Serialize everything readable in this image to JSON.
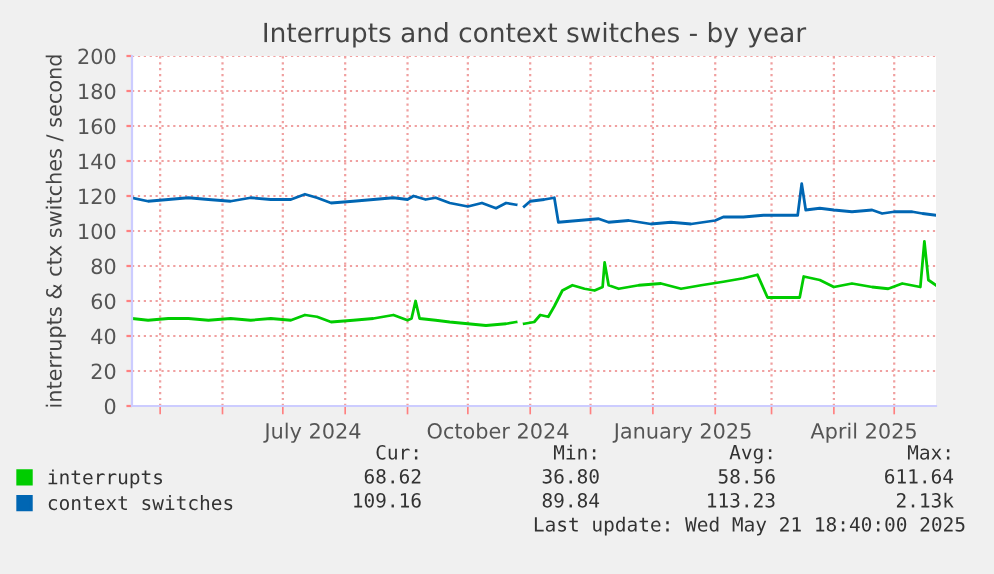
{
  "chart_data": {
    "type": "line",
    "title": "Interrupts and context switches - by year",
    "ylabel": "interrupts & ctx switches / second",
    "xlim": [
      "2024-04-17",
      "2025-05-21T18:40"
    ],
    "ylim": [
      0,
      200
    ],
    "yticks": [
      0,
      20,
      40,
      60,
      80,
      100,
      120,
      140,
      160,
      180,
      200
    ],
    "xticks": [
      {
        "value": "2024-05-01",
        "label": null
      },
      {
        "value": "2024-06-01",
        "label": null
      },
      {
        "value": "2024-07-01",
        "label": null
      },
      {
        "value": "2024-07-16",
        "label": "July 2024"
      },
      {
        "value": "2024-08-01",
        "label": null
      },
      {
        "value": "2024-09-01",
        "label": null
      },
      {
        "value": "2024-10-01",
        "label": null
      },
      {
        "value": "2024-10-16",
        "label": "October 2024"
      },
      {
        "value": "2024-11-01",
        "label": null
      },
      {
        "value": "2024-12-01",
        "label": null
      },
      {
        "value": "2025-01-01",
        "label": null
      },
      {
        "value": "2025-01-16",
        "label": "January 2025"
      },
      {
        "value": "2025-02-01",
        "label": null
      },
      {
        "value": "2025-03-01",
        "label": null
      },
      {
        "value": "2025-04-01",
        "label": null
      },
      {
        "value": "2025-04-16",
        "label": "April 2025"
      },
      {
        "value": "2025-05-01",
        "label": null
      }
    ],
    "grid": true,
    "legend": "bottom",
    "series": [
      {
        "name": "interrupts",
        "color": "#00cc00",
        "x": [
          "2024-04-17",
          "2024-04-25",
          "2024-05-05",
          "2024-05-15",
          "2024-05-25",
          "2024-06-05",
          "2024-06-15",
          "2024-06-25",
          "2024-07-05",
          "2024-07-12",
          "2024-07-18",
          "2024-07-25",
          "2024-08-05",
          "2024-08-15",
          "2024-08-25",
          "2024-09-01",
          "2024-09-03",
          "2024-09-05",
          "2024-09-07",
          "2024-09-15",
          "2024-09-22",
          "2024-10-01",
          "2024-10-10",
          "2024-10-20",
          "2024-10-25",
          "2024-10-27",
          "2024-10-29",
          "2024-11-03",
          "2024-11-06",
          "2024-11-10",
          "2024-11-13",
          "2024-11-17",
          "2024-11-22",
          "2024-11-28",
          "2024-12-03",
          "2024-12-07",
          "2024-12-08",
          "2024-12-10",
          "2024-12-15",
          "2024-12-25",
          "2025-01-05",
          "2025-01-15",
          "2025-01-25",
          "2025-02-05",
          "2025-02-15",
          "2025-02-22",
          "2025-02-27",
          "2025-03-05",
          "2025-03-15",
          "2025-03-17",
          "2025-03-25",
          "2025-04-01",
          "2025-04-10",
          "2025-04-20",
          "2025-04-28",
          "2025-05-05",
          "2025-05-14",
          "2025-05-16",
          "2025-05-18",
          "2025-05-21T18:40"
        ],
        "values": [
          50,
          49,
          50,
          50,
          49,
          50,
          49,
          50,
          49,
          52,
          51,
          48,
          49,
          50,
          52,
          49,
          50,
          60,
          50,
          49,
          48,
          47,
          46,
          47,
          48,
          null,
          47,
          48,
          52,
          51,
          57,
          66,
          69,
          67,
          66,
          68,
          82,
          69,
          67,
          69,
          70,
          67,
          69,
          71,
          73,
          75,
          62,
          62,
          62,
          74,
          72,
          68,
          70,
          68,
          67,
          70,
          68,
          94,
          72,
          69
        ]
      },
      {
        "name": "context switches",
        "color": "#0066b3",
        "x": [
          "2024-04-17",
          "2024-04-25",
          "2024-05-05",
          "2024-05-15",
          "2024-05-25",
          "2024-06-05",
          "2024-06-15",
          "2024-06-25",
          "2024-07-05",
          "2024-07-12",
          "2024-07-18",
          "2024-07-25",
          "2024-08-05",
          "2024-08-15",
          "2024-08-25",
          "2024-09-01",
          "2024-09-04",
          "2024-09-10",
          "2024-09-15",
          "2024-09-22",
          "2024-10-01",
          "2024-10-08",
          "2024-10-15",
          "2024-10-20",
          "2024-10-25",
          "2024-10-27",
          "2024-10-29",
          "2024-11-01",
          "2024-11-08",
          "2024-11-13",
          "2024-11-15",
          "2024-11-25",
          "2024-12-05",
          "2024-12-10",
          "2024-12-20",
          "2024-12-31",
          "2025-01-10",
          "2025-01-20",
          "2025-02-01",
          "2025-02-05",
          "2025-02-15",
          "2025-02-25",
          "2025-03-05",
          "2025-03-14",
          "2025-03-16",
          "2025-03-18",
          "2025-03-25",
          "2025-04-01",
          "2025-04-10",
          "2025-04-20",
          "2025-04-25",
          "2025-05-01",
          "2025-05-10",
          "2025-05-15",
          "2025-05-21T18:40"
        ],
        "values": [
          119,
          117,
          118,
          119,
          118,
          117,
          119,
          118,
          118,
          121,
          119,
          116,
          117,
          118,
          119,
          118,
          120,
          118,
          119,
          116,
          114,
          116,
          113,
          116,
          115,
          null,
          114,
          117,
          118,
          119,
          105,
          106,
          107,
          105,
          106,
          104,
          105,
          104,
          106,
          108,
          108,
          109,
          109,
          109,
          127,
          112,
          113,
          112,
          111,
          112,
          110,
          111,
          111,
          110,
          109
        ]
      }
    ],
    "annotations": [
      "Cur:",
      "Min:",
      "Avg:",
      "Max:",
      "68.62",
      "36.80",
      "58.56",
      "611.64",
      "109.16",
      "89.84",
      "113.23",
      "2.13k",
      "Last update: Wed May 21 18:40:00 2025"
    ]
  }
}
